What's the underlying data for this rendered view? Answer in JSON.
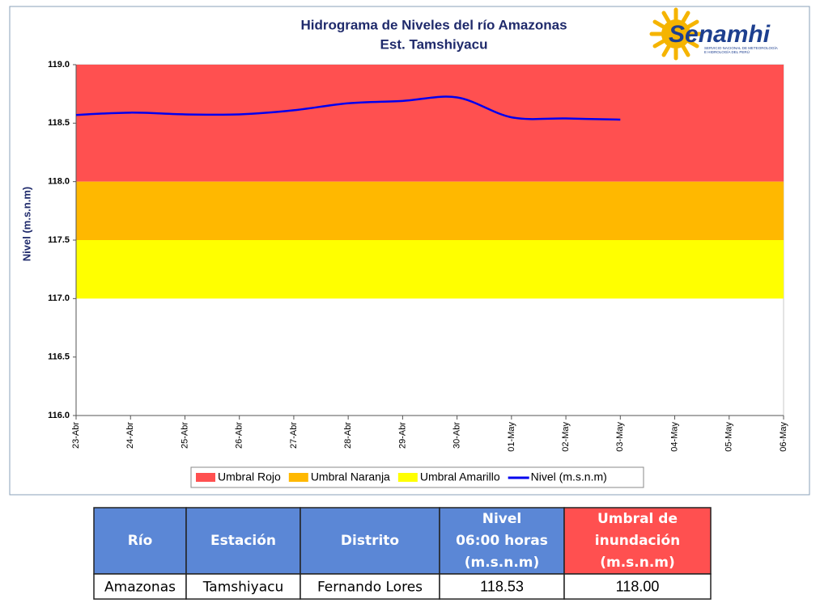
{
  "chart_data": {
    "type": "line",
    "title": [
      "Hidrograma de Niveles del río Amazonas",
      "Est. Tamshiyacu"
    ],
    "ylabel": "Nivel (m.s.n.m)",
    "logo": {
      "name": "Senamhi",
      "subtitle": [
        "SERVICIO NACIONAL DE METEOROLOGÍA",
        "E HIDROLOGÍA DEL PERÚ"
      ]
    },
    "categories": [
      "23-Abr",
      "24-Abr",
      "25-Abr",
      "26-Abr",
      "27-Abr",
      "28-Abr",
      "29-Abr",
      "30-Abr",
      "01-May",
      "02-May",
      "03-May",
      "04-May",
      "05-May",
      "06-May"
    ],
    "bands": [
      {
        "name": "Umbral Rojo",
        "color": "#ff5050",
        "low": 118,
        "high": 119
      },
      {
        "name": "Umbral Naranja",
        "color": "#ffb800",
        "low": 117.5,
        "high": 118
      },
      {
        "name": "Umbral Amarillo",
        "color": "#ffff00",
        "low": 117,
        "high": 117.5
      }
    ],
    "series": [
      {
        "name": "Nivel (m.s.n.m)",
        "color": "#0000ee",
        "values": [
          118.57,
          118.59,
          118.575,
          118.575,
          118.61,
          118.67,
          118.69,
          118.72,
          118.55,
          118.54,
          118.53,
          null,
          null,
          null
        ]
      }
    ],
    "ylim": [
      116,
      119
    ],
    "yticks": [
      {
        "value": 116,
        "label": "116.0"
      },
      {
        "value": 116.5,
        "label": "116.5"
      },
      {
        "value": 117,
        "label": "117.0"
      },
      {
        "value": 117.5,
        "label": "117.5"
      },
      {
        "value": 118,
        "label": "118.0"
      },
      {
        "value": 118.5,
        "label": "118.5"
      },
      {
        "value": 119,
        "label": "119.0"
      }
    ]
  },
  "table": {
    "header": [
      [
        "Río"
      ],
      [
        "Estación"
      ],
      [
        "Distrito"
      ],
      [
        "Nivel",
        "06:00 horas",
        "(m.s.n.m)"
      ],
      [
        "Umbral de",
        "inundación",
        "(m.s.n.m)"
      ]
    ],
    "rows": [
      [
        "Amazonas",
        "Tamshiyacu",
        "Fernando Lores",
        "118.53",
        "118.00"
      ]
    ]
  }
}
